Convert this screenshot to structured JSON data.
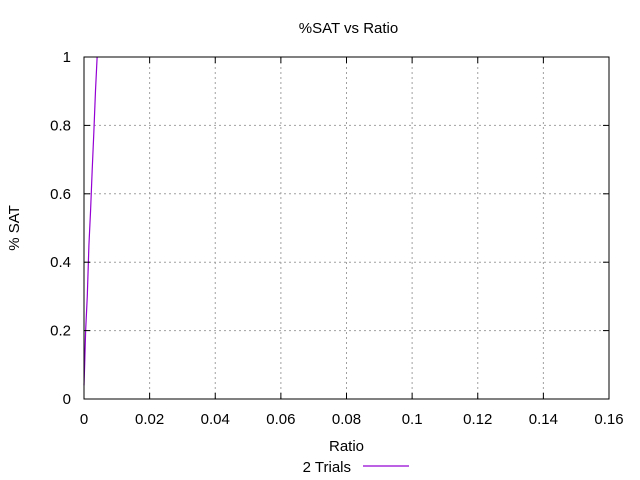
{
  "chart_data": {
    "type": "line",
    "title": "%SAT vs Ratio",
    "xlabel": "Ratio",
    "ylabel": "% SAT",
    "xlim": [
      0,
      0.16
    ],
    "ylim": [
      0,
      1
    ],
    "x_ticks": [
      0,
      0.02,
      0.04,
      0.06,
      0.08,
      0.1,
      0.12,
      0.14,
      0.16
    ],
    "x_tick_labels": [
      "0",
      "0.02",
      "0.04",
      "0.06",
      "0.08",
      "0.1",
      "0.12",
      "0.14",
      "0.16"
    ],
    "y_ticks": [
      0,
      0.2,
      0.4,
      0.6,
      0.8,
      1
    ],
    "y_tick_labels": [
      "0",
      "0.2",
      "0.4",
      "0.6",
      "0.8",
      "1"
    ],
    "grid": true,
    "legend_position": "bottom-center",
    "series": [
      {
        "name": "2 Trials",
        "color": "#9400d3",
        "x": [
          0,
          0.0002,
          0.0005,
          0.001,
          0.0015,
          0.002,
          0.0025,
          0.003,
          0.0035,
          0.004
        ],
        "y": [
          0.04,
          0.1,
          0.2,
          0.3,
          0.45,
          0.55,
          0.67,
          0.78,
          0.9,
          1.0
        ]
      }
    ]
  }
}
